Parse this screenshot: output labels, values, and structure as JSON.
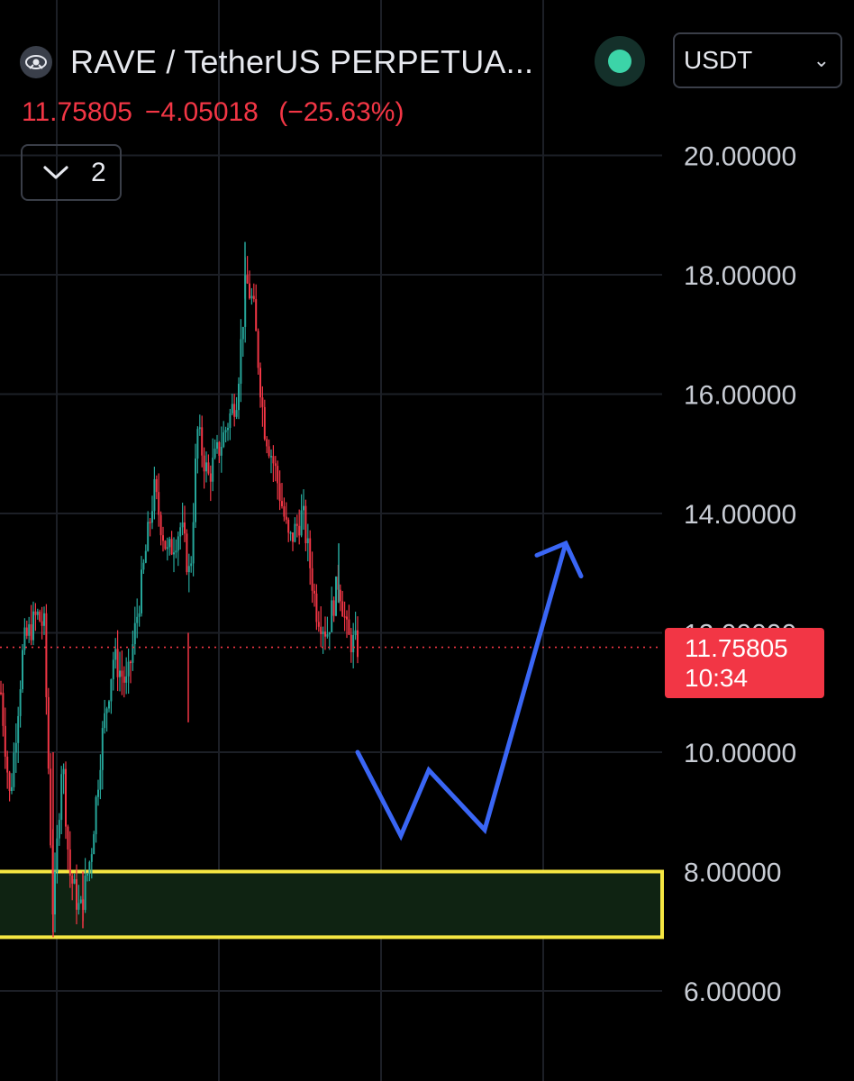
{
  "header": {
    "symbol_title": "RAVE / TetherUS PERPETUA...",
    "currency": "USDT",
    "last_price": "11.75805",
    "change": "−4.05018",
    "change_pct": "(−25.63%)",
    "collapse_count": "2"
  },
  "price_label": {
    "price": "11.75805",
    "countdown": "10:34"
  },
  "colors": {
    "background": "#000000",
    "up": "#26a69a",
    "down": "#f23645",
    "annotation": "#3a66f5",
    "zone_border": "#f5e642",
    "zone_fill": "#0f2312",
    "status_dot": "#3cd4a8"
  },
  "icons": {
    "symbol": "rave-logo-icon",
    "status": "market-open-dot-icon",
    "dropdown": "chevron-down-icon",
    "collapse": "chevron-down-icon"
  },
  "chart_data": {
    "type": "candlestick",
    "y_axis": {
      "ticks": [
        "20.00000",
        "18.00000",
        "16.00000",
        "14.00000",
        "12.00000",
        "10.00000",
        "8.00000",
        "6.00000"
      ],
      "range": [
        5.0,
        21.3
      ],
      "position": "right"
    },
    "grid": true,
    "current_price": 11.75805,
    "support_zone": {
      "low": 6.9,
      "high": 8.0
    },
    "anchors": [
      [
        0,
        11.0
      ],
      [
        10,
        9.2
      ],
      [
        25,
        11.8
      ],
      [
        40,
        12.3
      ],
      [
        48,
        12.1
      ],
      [
        58,
        7.2
      ],
      [
        68,
        10.0
      ],
      [
        76,
        8.0
      ],
      [
        88,
        7.3
      ],
      [
        100,
        8.3
      ],
      [
        112,
        10.2
      ],
      [
        125,
        11.6
      ],
      [
        140,
        11.1
      ],
      [
        155,
        12.7
      ],
      [
        170,
        14.4
      ],
      [
        185,
        13.3
      ],
      [
        200,
        13.8
      ],
      [
        210,
        12.9
      ],
      [
        218,
        15.4
      ],
      [
        230,
        14.6
      ],
      [
        245,
        15.2
      ],
      [
        262,
        16.0
      ],
      [
        272,
        17.9
      ],
      [
        280,
        17.5
      ],
      [
        292,
        15.5
      ],
      [
        305,
        14.7
      ],
      [
        320,
        13.5
      ],
      [
        335,
        14.0
      ],
      [
        350,
        12.4
      ],
      [
        362,
        12.0
      ],
      [
        375,
        12.9
      ],
      [
        385,
        11.9
      ],
      [
        398,
        11.76
      ]
    ],
    "projection_path": [
      [
        397,
        10.0
      ],
      [
        445,
        8.6
      ],
      [
        476,
        9.7
      ],
      [
        538,
        8.7
      ],
      [
        628,
        13.5
      ]
    ],
    "projection_arrowhead": [
      [
        596,
        13.3
      ],
      [
        628,
        13.5
      ],
      [
        645,
        12.95
      ]
    ]
  }
}
